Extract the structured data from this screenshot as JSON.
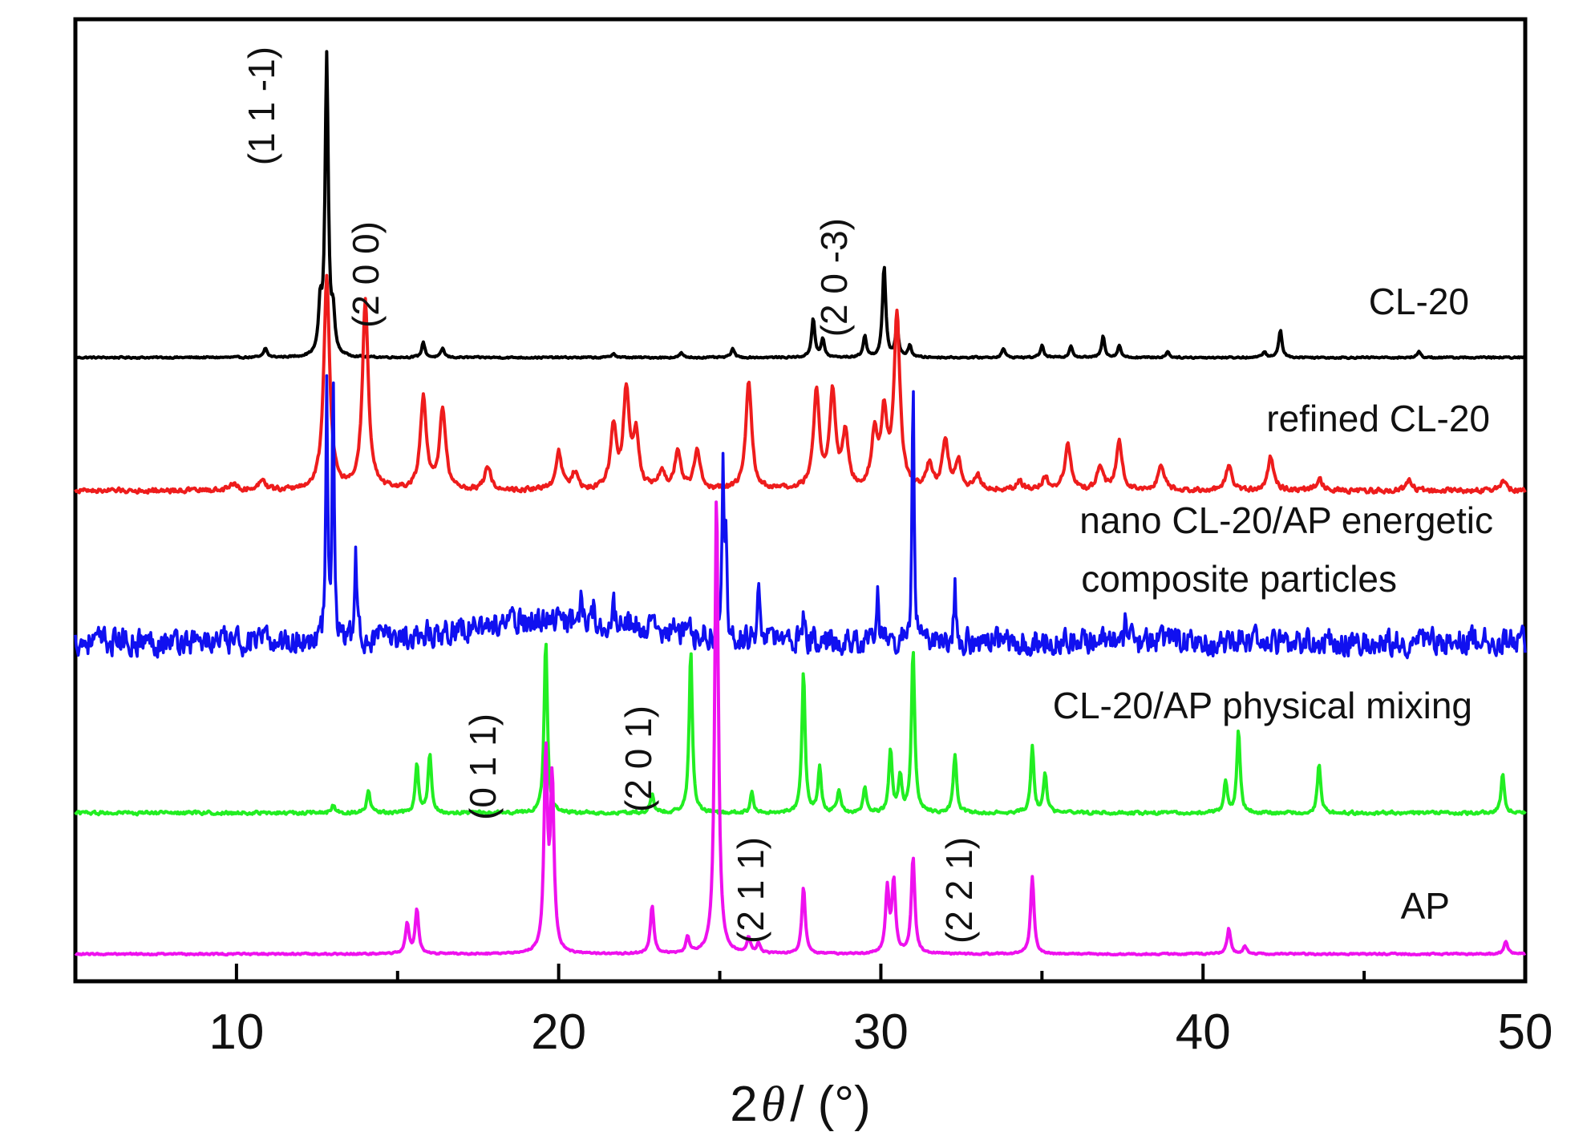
{
  "chart_data": {
    "type": "line",
    "xlabel_prefix": "2",
    "xlabel_symbol": "θ",
    "xlabel_suffix": "/ (°)",
    "ylabel": "",
    "xlim": [
      5,
      50
    ],
    "x_ticks": [
      10,
      20,
      30,
      40,
      50
    ],
    "grid": false,
    "series": [
      {
        "name": "CL-20",
        "color": "#000000",
        "baseline": 0,
        "noise": 0.3,
        "peaks": [
          [
            10.9,
            3
          ],
          [
            12.6,
            15
          ],
          [
            12.8,
            98
          ],
          [
            13.0,
            12
          ],
          [
            15.8,
            5
          ],
          [
            16.4,
            3
          ],
          [
            21.7,
            1.5
          ],
          [
            23.8,
            1.5
          ],
          [
            25.4,
            3
          ],
          [
            27.9,
            13
          ],
          [
            28.2,
            6
          ],
          [
            29.5,
            7
          ],
          [
            30.1,
            30
          ],
          [
            30.5,
            10
          ],
          [
            30.9,
            4
          ],
          [
            33.8,
            3
          ],
          [
            35.0,
            4
          ],
          [
            35.9,
            4
          ],
          [
            36.9,
            7
          ],
          [
            37.4,
            4
          ],
          [
            38.9,
            2
          ],
          [
            41.9,
            2
          ],
          [
            42.4,
            9
          ],
          [
            46.7,
            2
          ]
        ]
      },
      {
        "name": "refined CL-20",
        "color": "#ee1c1c",
        "baseline": 0,
        "noise": 1.2,
        "peaks": [
          [
            9.9,
            3
          ],
          [
            10.8,
            5
          ],
          [
            12.8,
            88
          ],
          [
            14.0,
            78
          ],
          [
            15.8,
            38
          ],
          [
            16.4,
            34
          ],
          [
            17.8,
            10
          ],
          [
            20.0,
            16
          ],
          [
            20.5,
            7
          ],
          [
            21.7,
            26
          ],
          [
            22.1,
            40
          ],
          [
            22.4,
            22
          ],
          [
            23.2,
            8
          ],
          [
            23.7,
            16
          ],
          [
            24.3,
            16
          ],
          [
            25.9,
            45
          ],
          [
            28.0,
            40
          ],
          [
            28.5,
            40
          ],
          [
            28.9,
            22
          ],
          [
            29.8,
            22
          ],
          [
            30.1,
            30
          ],
          [
            30.5,
            72
          ],
          [
            31.5,
            10
          ],
          [
            32.0,
            20
          ],
          [
            32.4,
            12
          ],
          [
            33.0,
            6
          ],
          [
            34.3,
            4
          ],
          [
            35.1,
            5
          ],
          [
            35.8,
            19
          ],
          [
            36.8,
            10
          ],
          [
            37.4,
            20
          ],
          [
            38.7,
            11
          ],
          [
            40.8,
            10
          ],
          [
            42.1,
            14
          ],
          [
            43.6,
            5
          ],
          [
            46.4,
            4
          ],
          [
            49.3,
            4
          ]
        ]
      },
      {
        "name": "nano CL-20/AP energetic composite particles",
        "color": "#1010f0",
        "baseline": 0,
        "noise": 3.5,
        "hump": [
          20.0,
          4.0,
          9
        ],
        "peaks": [
          [
            12.8,
            102
          ],
          [
            13.0,
            112
          ],
          [
            13.7,
            36
          ],
          [
            20.7,
            19
          ],
          [
            21.1,
            7
          ],
          [
            21.7,
            8
          ],
          [
            25.1,
            68
          ],
          [
            25.2,
            38
          ],
          [
            26.2,
            28
          ],
          [
            27.6,
            9
          ],
          [
            29.9,
            19
          ],
          [
            31.0,
            115
          ],
          [
            32.3,
            24
          ],
          [
            37.6,
            10
          ]
        ]
      },
      {
        "name": "CL-20/AP physical mixing",
        "color": "#22ee22",
        "baseline": 0,
        "noise": 0.9,
        "peaks": [
          [
            13.0,
            3
          ],
          [
            14.1,
            8
          ],
          [
            15.6,
            17
          ],
          [
            16.0,
            21
          ],
          [
            19.6,
            60
          ],
          [
            22.9,
            7
          ],
          [
            24.1,
            56
          ],
          [
            26.0,
            7
          ],
          [
            27.6,
            49
          ],
          [
            28.1,
            16
          ],
          [
            28.7,
            8
          ],
          [
            29.5,
            9
          ],
          [
            30.3,
            22
          ],
          [
            30.6,
            12
          ],
          [
            31.0,
            57
          ],
          [
            32.3,
            20
          ],
          [
            34.7,
            23
          ],
          [
            35.1,
            14
          ],
          [
            40.7,
            11
          ],
          [
            41.1,
            29
          ],
          [
            43.6,
            17
          ],
          [
            49.3,
            14
          ]
        ]
      },
      {
        "name": "AP",
        "color": "#ee11ee",
        "baseline": 0,
        "noise": 0.5,
        "peaks": [
          [
            15.3,
            12
          ],
          [
            15.6,
            17
          ],
          [
            19.6,
            77
          ],
          [
            19.8,
            66
          ],
          [
            22.9,
            19
          ],
          [
            24.0,
            6
          ],
          [
            24.9,
            180
          ],
          [
            25.9,
            6
          ],
          [
            26.2,
            4
          ],
          [
            27.6,
            26
          ],
          [
            30.2,
            25
          ],
          [
            30.4,
            28
          ],
          [
            31.0,
            38
          ],
          [
            34.7,
            30
          ],
          [
            40.8,
            10
          ],
          [
            41.3,
            3
          ],
          [
            49.4,
            5
          ]
        ]
      }
    ],
    "series_labels": [
      {
        "lines": [
          "CL-20"
        ]
      },
      {
        "lines": [
          "refined CL-20"
        ]
      },
      {
        "lines": [
          "nano CL-20/AP energetic",
          "composite particles"
        ]
      },
      {
        "lines": [
          "CL-20/AP physical mixing"
        ]
      },
      {
        "lines": [
          "AP"
        ]
      }
    ],
    "annotations": [
      {
        "text": "(1 1 -1)",
        "series": 0
      },
      {
        "text": "(2 0 0)",
        "series": 0
      },
      {
        "text": "(2 0 -3)",
        "series": 0
      },
      {
        "text": "(0 1 1)",
        "series": 4
      },
      {
        "text": "(2 0 1)",
        "series": 4
      },
      {
        "text": "(2 1 1)",
        "series": 4
      },
      {
        "text": "(2 2 1)",
        "series": 4
      }
    ]
  }
}
